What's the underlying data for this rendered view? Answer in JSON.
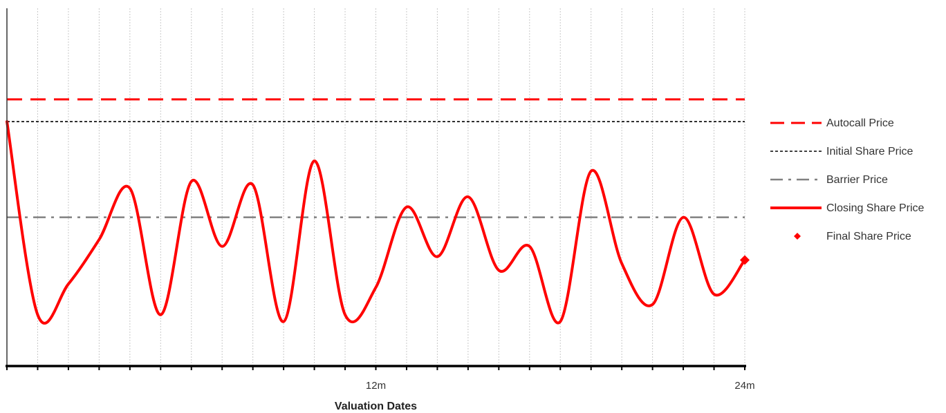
{
  "chart_data": {
    "type": "line",
    "title": "",
    "xlabel": "Valuation Dates",
    "ylabel": "",
    "xlim": [
      0,
      24
    ],
    "ylim": [
      0,
      100
    ],
    "x_ticks": [
      {
        "value": 12,
        "label": "12m"
      },
      {
        "value": 24,
        "label": "24m"
      }
    ],
    "grid": {
      "vertical": true,
      "horizontal": false
    },
    "legend_position": "right",
    "reference_lines": [
      {
        "name": "Autocall Price",
        "value": 78,
        "style": "dashed",
        "color": "#ff0000"
      },
      {
        "name": "Initial Share Price",
        "value": 71.5,
        "style": "dotted",
        "color": "#000000"
      },
      {
        "name": "Barrier Price",
        "value": 43.5,
        "style": "dashdot",
        "color": "#808080"
      }
    ],
    "series": [
      {
        "name": "Closing Share Price",
        "color": "#ff0000",
        "points": [
          [
            0,
            71.5
          ],
          [
            1,
            15
          ],
          [
            2,
            24
          ],
          [
            3,
            37
          ],
          [
            4,
            52
          ],
          [
            5,
            15
          ],
          [
            6,
            54
          ],
          [
            7,
            35
          ],
          [
            8,
            53
          ],
          [
            9,
            13
          ],
          [
            10,
            60
          ],
          [
            11,
            15
          ],
          [
            12,
            23
          ],
          [
            13,
            46.5
          ],
          [
            14,
            32
          ],
          [
            15,
            49.5
          ],
          [
            16,
            28
          ],
          [
            17,
            35
          ],
          [
            18,
            13
          ],
          [
            19,
            57
          ],
          [
            20,
            30
          ],
          [
            21,
            18
          ],
          [
            22,
            43.5
          ],
          [
            23,
            21
          ],
          [
            24,
            31
          ]
        ]
      }
    ],
    "final_point": {
      "name": "Final Share Price",
      "x": 24,
      "y": 31,
      "color": "#ff0000"
    },
    "legend": [
      {
        "label": "Autocall Price",
        "style": "dashed",
        "color": "#ff0000"
      },
      {
        "label": "Initial Share Price",
        "style": "dotted",
        "color": "#000000"
      },
      {
        "label": "Barrier Price",
        "style": "dashdot",
        "color": "#808080"
      },
      {
        "label": "Closing Share Price",
        "style": "solid",
        "color": "#ff0000"
      },
      {
        "label": "Final Share Price",
        "style": "diamond",
        "color": "#ff0000"
      }
    ]
  }
}
